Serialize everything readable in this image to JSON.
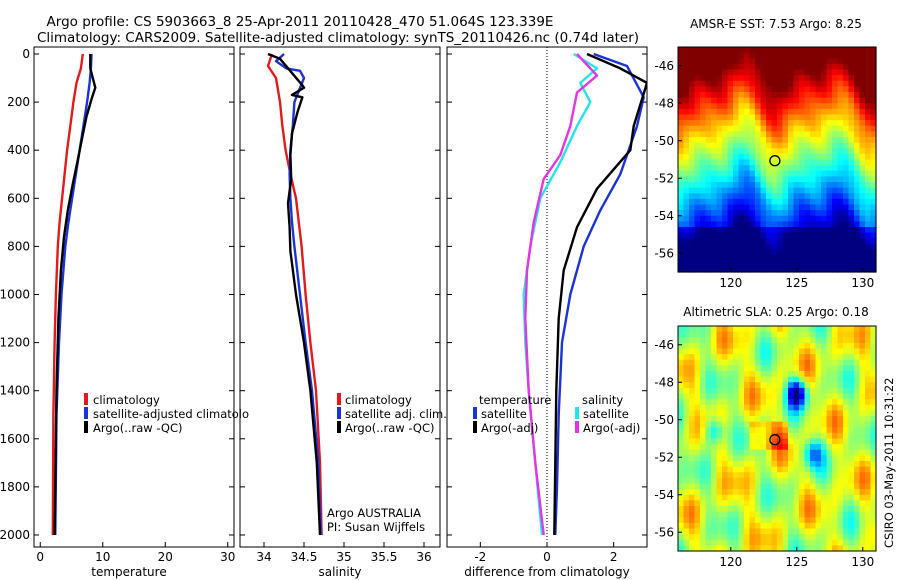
{
  "header": {
    "line1": "Argo profile: CS 5903663_8 25-Apr-2011 20110428_470 51.064S 123.339E",
    "line2": "Climatology: CARS2009. Satellite-adjusted climatology: synTS_20110426.nc (0.74d later)"
  },
  "side_label": "CSIRO 03-May-2011 10:31:22",
  "colors": {
    "red": "#e31a1c",
    "blue": "#1a33d9",
    "black": "#000000",
    "cyan": "#22e5e5",
    "magenta": "#e633e6"
  },
  "chart_data": [
    {
      "type": "line",
      "id": "temperature",
      "xlabel": "temperature",
      "xlim": [
        -1,
        31
      ],
      "ylim": [
        0,
        2050
      ],
      "xticks": [
        0,
        10,
        20,
        30
      ],
      "yticks": [
        0,
        200,
        400,
        600,
        800,
        1000,
        1200,
        1400,
        1600,
        1800,
        2000
      ],
      "legend": [
        "climatology",
        "satellite-adjusted climatolo",
        "Argo(..raw -QC)"
      ],
      "series": [
        {
          "name": "climatology",
          "color": "red",
          "points": [
            [
              6.8,
              0
            ],
            [
              6.5,
              60
            ],
            [
              5.8,
              120
            ],
            [
              5.3,
              200
            ],
            [
              4.8,
              300
            ],
            [
              4.3,
              400
            ],
            [
              3.9,
              500
            ],
            [
              3.5,
              600
            ],
            [
              3.1,
              700
            ],
            [
              2.8,
              800
            ],
            [
              2.5,
              1000
            ],
            [
              2.3,
              1200
            ],
            [
              2.1,
              1500
            ],
            [
              2.0,
              2000
            ]
          ]
        },
        {
          "name": "satellite-adjusted climatology",
          "color": "blue",
          "points": [
            [
              8.2,
              0
            ],
            [
              8.1,
              60
            ],
            [
              7.9,
              120
            ],
            [
              7.5,
              200
            ],
            [
              6.9,
              300
            ],
            [
              6.3,
              400
            ],
            [
              5.7,
              500
            ],
            [
              5.1,
              600
            ],
            [
              4.5,
              700
            ],
            [
              4.0,
              800
            ],
            [
              3.4,
              1000
            ],
            [
              3.0,
              1200
            ],
            [
              2.6,
              1500
            ],
            [
              2.4,
              2000
            ]
          ]
        },
        {
          "name": "Argo(..raw -QC)",
          "color": "black",
          "points": [
            [
              8.0,
              0
            ],
            [
              8.0,
              60
            ],
            [
              8.8,
              140
            ],
            [
              8.3,
              180
            ],
            [
              7.4,
              260
            ],
            [
              6.7,
              350
            ],
            [
              6.0,
              440
            ],
            [
              5.2,
              540
            ],
            [
              4.4,
              650
            ],
            [
              3.8,
              760
            ],
            [
              3.3,
              900
            ],
            [
              2.9,
              1100
            ],
            [
              2.6,
              1400
            ],
            [
              2.3,
              2000
            ]
          ]
        }
      ]
    },
    {
      "type": "line",
      "id": "salinity",
      "xlabel": "salinity",
      "xlim": [
        33.7,
        36.2
      ],
      "ylim": [
        0,
        2050
      ],
      "xticks": [
        34,
        34.5,
        35,
        35.5,
        36
      ],
      "legend": [
        "climatology",
        "satellite adj. clim.",
        "Argo(..raw -QC)"
      ],
      "series": [
        {
          "name": "climatology",
          "color": "red",
          "points": [
            [
              34.1,
              0
            ],
            [
              34.05,
              50
            ],
            [
              34.15,
              100
            ],
            [
              34.2,
              200
            ],
            [
              34.23,
              300
            ],
            [
              34.27,
              400
            ],
            [
              34.33,
              500
            ],
            [
              34.4,
              600
            ],
            [
              34.47,
              800
            ],
            [
              34.52,
              1000
            ],
            [
              34.58,
              1200
            ],
            [
              34.65,
              1400
            ],
            [
              34.7,
              1700
            ],
            [
              34.72,
              2000
            ]
          ]
        },
        {
          "name": "satellite adj. clim.",
          "color": "blue",
          "points": [
            [
              34.25,
              0
            ],
            [
              34.15,
              30
            ],
            [
              34.28,
              60
            ],
            [
              34.45,
              70
            ],
            [
              34.5,
              100
            ],
            [
              34.38,
              200
            ],
            [
              34.36,
              300
            ],
            [
              34.33,
              400
            ],
            [
              34.32,
              500
            ],
            [
              34.33,
              600
            ],
            [
              34.35,
              700
            ],
            [
              34.38,
              800
            ],
            [
              34.45,
              1000
            ],
            [
              34.52,
              1200
            ],
            [
              34.6,
              1400
            ],
            [
              34.68,
              1700
            ],
            [
              34.71,
              2000
            ]
          ]
        },
        {
          "name": "Argo(..raw -QC)",
          "color": "black",
          "points": [
            [
              34.05,
              0
            ],
            [
              34.2,
              20
            ],
            [
              34.48,
              130
            ],
            [
              34.5,
              140
            ],
            [
              34.35,
              170
            ],
            [
              34.48,
              180
            ],
            [
              34.42,
              240
            ],
            [
              34.35,
              330
            ],
            [
              34.33,
              420
            ],
            [
              34.34,
              520
            ],
            [
              34.3,
              620
            ],
            [
              34.32,
              720
            ],
            [
              34.33,
              820
            ],
            [
              34.4,
              1000
            ],
            [
              34.5,
              1200
            ],
            [
              34.58,
              1400
            ],
            [
              34.66,
              1700
            ],
            [
              34.7,
              2000
            ]
          ]
        }
      ]
    },
    {
      "type": "line",
      "id": "difference",
      "xlabel": "difference from climatology",
      "xlim": [
        -3,
        3
      ],
      "ylim": [
        0,
        2050
      ],
      "xticks": [
        -2,
        0,
        2
      ],
      "legend_left_title": "temperature",
      "legend_right_title": "salinity",
      "legend": [
        "satellite",
        "Argo(-adj)",
        "satellite",
        "Argo(-adj)"
      ],
      "series": [
        {
          "name": "temperature satellite",
          "color": "blue",
          "points": [
            [
              1.4,
              0
            ],
            [
              2.4,
              50
            ],
            [
              2.9,
              180
            ],
            [
              2.7,
              300
            ],
            [
              2.2,
              500
            ],
            [
              1.6,
              650
            ],
            [
              1.1,
              800
            ],
            [
              0.7,
              1000
            ],
            [
              0.45,
              1200
            ],
            [
              0.35,
              1500
            ],
            [
              0.3,
              1800
            ],
            [
              0.25,
              2000
            ]
          ]
        },
        {
          "name": "temperature Argo(-adj)",
          "color": "black",
          "points": [
            [
              1.2,
              0
            ],
            [
              2.2,
              60
            ],
            [
              3.0,
              120
            ],
            [
              2.6,
              300
            ],
            [
              2.5,
              400
            ],
            [
              1.5,
              560
            ],
            [
              0.9,
              720
            ],
            [
              0.5,
              900
            ],
            [
              0.35,
              1100
            ],
            [
              0.28,
              1400
            ],
            [
              0.25,
              1700
            ],
            [
              0.22,
              2000
            ]
          ]
        },
        {
          "name": "salinity satellite",
          "color": "cyan",
          "points": [
            [
              0.8,
              0
            ],
            [
              1.5,
              60
            ],
            [
              1.0,
              120
            ],
            [
              1.3,
              200
            ],
            [
              0.9,
              300
            ],
            [
              0.4,
              450
            ],
            [
              -0.2,
              600
            ],
            [
              -0.5,
              800
            ],
            [
              -0.7,
              1000
            ],
            [
              -0.65,
              1200
            ],
            [
              -0.55,
              1400
            ],
            [
              -0.35,
              1700
            ],
            [
              -0.15,
              2000
            ]
          ]
        },
        {
          "name": "salinity Argo(-adj)",
          "color": "magenta",
          "points": [
            [
              0.9,
              0
            ],
            [
              1.5,
              90
            ],
            [
              0.9,
              160
            ],
            [
              0.7,
              300
            ],
            [
              0.4,
              420
            ],
            [
              -0.1,
              520
            ],
            [
              -0.4,
              700
            ],
            [
              -0.6,
              900
            ],
            [
              -0.65,
              1100
            ],
            [
              -0.55,
              1400
            ],
            [
              -0.35,
              1700
            ],
            [
              -0.1,
              2000
            ]
          ]
        }
      ]
    },
    {
      "type": "heatmap",
      "id": "sst-map",
      "title": "AMSR-E SST: 7.53  Argo: 8.25",
      "xlim": [
        116,
        131
      ],
      "ylim": [
        -57,
        -45
      ],
      "xticks": [
        120,
        125,
        130
      ],
      "yticks": [
        -46,
        -48,
        -50,
        -52,
        -54,
        -56
      ],
      "marker": [
        123.339,
        -51.064
      ]
    },
    {
      "type": "heatmap",
      "id": "sla-map",
      "title": "Altimetric SLA: 0.25  Argo: 0.18",
      "xlim": [
        116,
        131
      ],
      "ylim": [
        -57,
        -45
      ],
      "xticks": [
        120,
        125,
        130
      ],
      "yticks": [
        -46,
        -48,
        -50,
        -52,
        -54,
        -56
      ],
      "marker": [
        123.339,
        -51.064
      ],
      "low_spots": [
        [
          125.0,
          -48.6
        ],
        [
          126.2,
          -51.8
        ],
        [
          118.8,
          -50.6
        ]
      ]
    }
  ],
  "text_annotations": {
    "line1": "Argo AUSTRALIA",
    "line2": "PI: Susan Wijffels"
  }
}
